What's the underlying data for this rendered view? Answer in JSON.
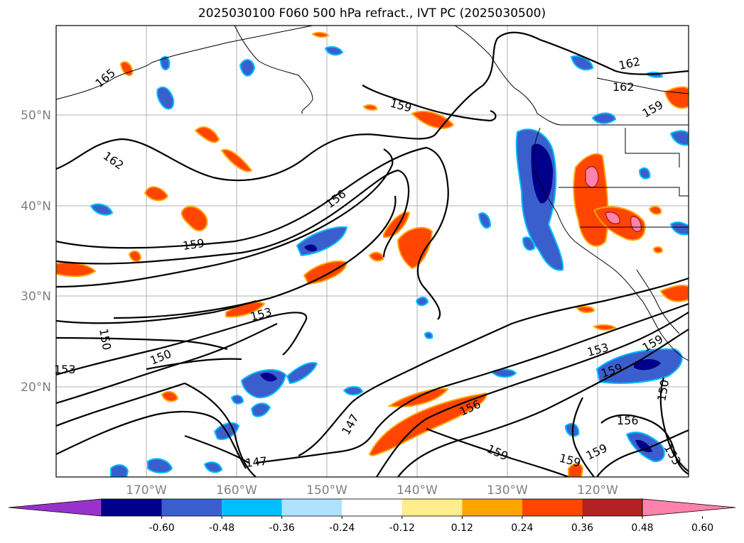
{
  "title": "2025030100 F060 500 hPa refract., IVT PC (2025030500)",
  "lat_labels": [
    "50°N",
    "40°N",
    "30°N",
    "20°N"
  ],
  "lon_labels": [
    "170°W",
    "160°W",
    "150°W",
    "140°W",
    "130°W",
    "120°W"
  ],
  "contour_labels": [
    "165",
    "162",
    "162",
    "162",
    "159",
    "159",
    "159",
    "159",
    "159",
    "159",
    "159",
    "159",
    "156",
    "156",
    "156",
    "153",
    "153",
    "153",
    "153",
    "150",
    "150",
    "150",
    "147",
    "147"
  ],
  "colorbar": {
    "ticks": [
      "-0.60",
      "-0.48",
      "-0.36",
      "-0.24",
      "-0.12",
      "0.12",
      "0.24",
      "0.36",
      "0.48",
      "0.60"
    ],
    "colors": [
      "#9932cc",
      "#00008b",
      "#3a5fcd",
      "#00bfff",
      "#b0e2ff",
      "#ffffff",
      "#ffec8b",
      "#ffa500",
      "#ff4500",
      "#b22222",
      "#ff82ab"
    ]
  }
}
